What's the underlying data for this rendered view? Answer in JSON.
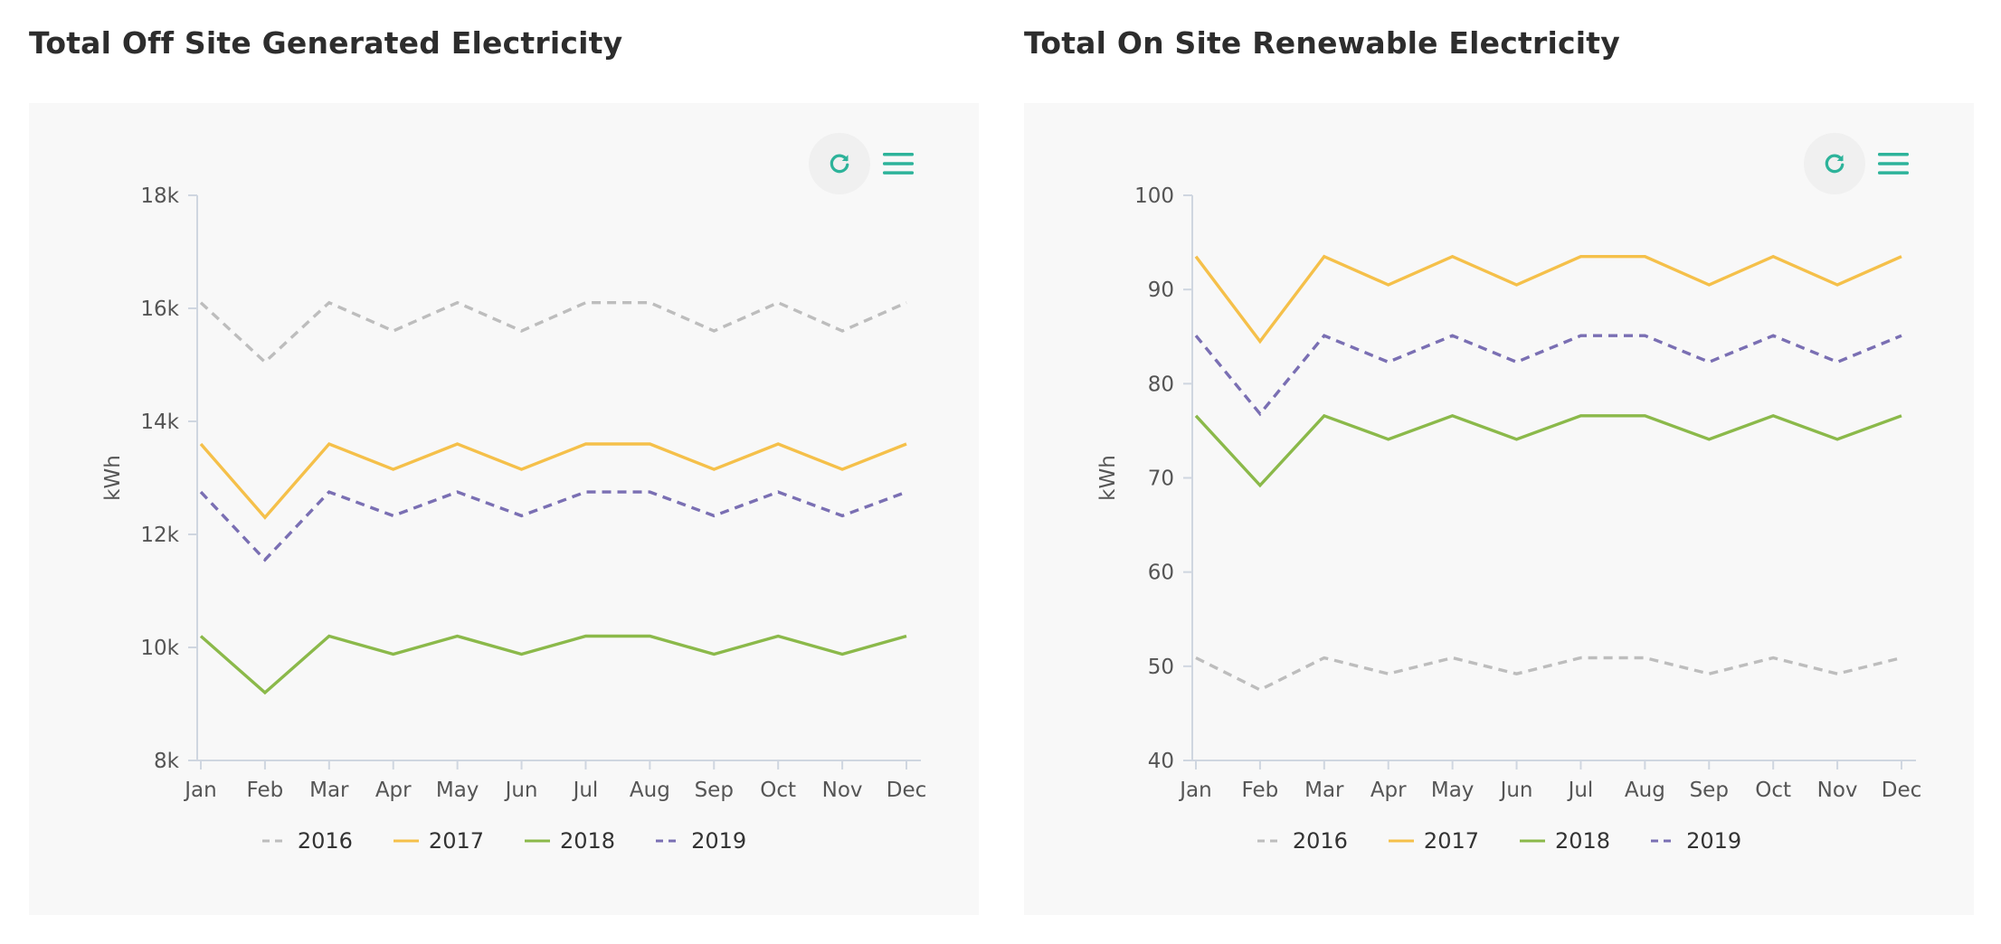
{
  "colors": {
    "2016": "#bdbdbd",
    "2017": "#f5c04a",
    "2018": "#8bb94a",
    "2019": "#7a6fb3",
    "accent": "#2db39a",
    "axis": "#cfd6e0",
    "text": "#555555"
  },
  "icons": {
    "reset": "refresh-icon",
    "menu": "hamburger-menu-icon"
  },
  "chart_data": [
    {
      "type": "line",
      "title": "Total Off Site Generated Electricity",
      "ylabel": "kWh",
      "ylim": [
        8000,
        18000
      ],
      "yticks": [
        8000,
        10000,
        12000,
        14000,
        16000,
        18000
      ],
      "ytick_labels": [
        "8k",
        "10k",
        "12k",
        "14k",
        "16k",
        "18k"
      ],
      "categories": [
        "Jan",
        "Feb",
        "Mar",
        "Apr",
        "May",
        "Jun",
        "Jul",
        "Aug",
        "Sep",
        "Oct",
        "Nov",
        "Dec"
      ],
      "legend_position": "bottom",
      "series": [
        {
          "name": "2016",
          "dashed": true,
          "values": [
            16100,
            15050,
            16100,
            15600,
            16100,
            15600,
            16100,
            16100,
            15600,
            16100,
            15600,
            16100
          ]
        },
        {
          "name": "2017",
          "dashed": false,
          "values": [
            13600,
            12300,
            13600,
            13150,
            13600,
            13150,
            13600,
            13600,
            13150,
            13600,
            13150,
            13600
          ]
        },
        {
          "name": "2018",
          "dashed": false,
          "values": [
            10200,
            9200,
            10200,
            9880,
            10200,
            9880,
            10200,
            10200,
            9880,
            10200,
            9880,
            10200
          ]
        },
        {
          "name": "2019",
          "dashed": true,
          "values": [
            12750,
            11550,
            12750,
            12330,
            12750,
            12330,
            12750,
            12750,
            12330,
            12750,
            12330,
            12750
          ]
        }
      ]
    },
    {
      "type": "line",
      "title": "Total On Site Renewable Electricity",
      "ylabel": "kWh",
      "ylim": [
        40,
        100
      ],
      "yticks": [
        40,
        50,
        60,
        70,
        80,
        90,
        100
      ],
      "ytick_labels": [
        "40",
        "50",
        "60",
        "70",
        "80",
        "90",
        "100"
      ],
      "categories": [
        "Jan",
        "Feb",
        "Mar",
        "Apr",
        "May",
        "Jun",
        "Jul",
        "Aug",
        "Sep",
        "Oct",
        "Nov",
        "Dec"
      ],
      "legend_position": "bottom",
      "series": [
        {
          "name": "2016",
          "dashed": true,
          "values": [
            50.9,
            47.5,
            50.9,
            49.2,
            50.9,
            49.2,
            50.9,
            50.9,
            49.2,
            50.9,
            49.2,
            50.9
          ]
        },
        {
          "name": "2017",
          "dashed": false,
          "values": [
            93.5,
            84.5,
            93.5,
            90.5,
            93.5,
            90.5,
            93.5,
            93.5,
            90.5,
            93.5,
            90.5,
            93.5
          ]
        },
        {
          "name": "2018",
          "dashed": false,
          "values": [
            76.6,
            69.2,
            76.6,
            74.1,
            76.6,
            74.1,
            76.6,
            76.6,
            74.1,
            76.6,
            74.1,
            76.6
          ]
        },
        {
          "name": "2019",
          "dashed": true,
          "values": [
            85.1,
            76.8,
            85.1,
            82.3,
            85.1,
            82.3,
            85.1,
            85.1,
            82.3,
            85.1,
            82.3,
            85.1
          ]
        }
      ]
    }
  ]
}
